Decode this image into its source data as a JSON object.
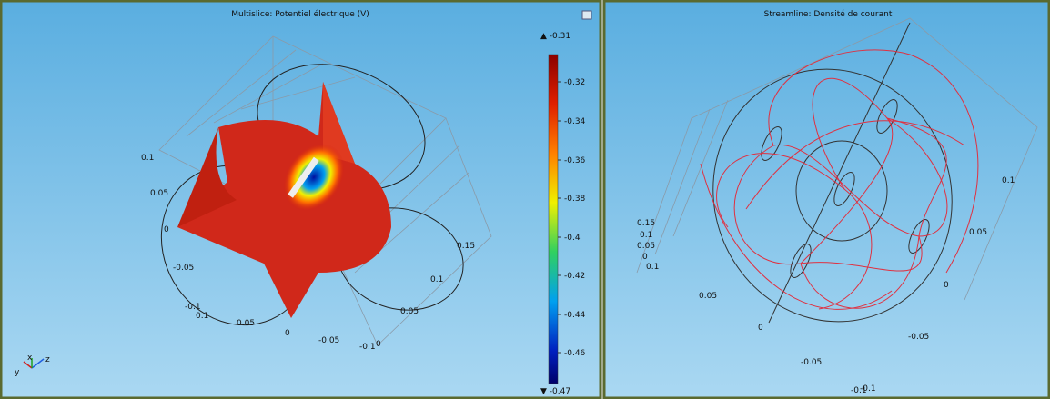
{
  "panels": [
    {
      "title": "Multislice: Potentiel électrique (V)",
      "colorbar": {
        "max": "▲ -0.31",
        "min": "▼ -0.47",
        "ticks": [
          "-0.32",
          "-0.34",
          "-0.36",
          "-0.38",
          "-0.4",
          "-0.42",
          "-0.44",
          "-0.46"
        ]
      },
      "axis_labels": [
        "0.1",
        "0.05",
        "0",
        "-0.05",
        "-0.1",
        "0.1",
        "0.05",
        "0",
        "-0.05",
        "-0.1",
        "0",
        "0.05",
        "0.1",
        "0.15"
      ],
      "triad": [
        "x",
        "y",
        "z"
      ]
    },
    {
      "title": "Streamline: Densité de courant",
      "axis_labels": [
        "0.1",
        "0.05",
        "0",
        "-0.05",
        "-0.1",
        "0.15",
        "0.1",
        "0.05",
        "0",
        "0.1",
        "0.05",
        "0",
        "-0.05",
        "-0.1"
      ]
    }
  ]
}
